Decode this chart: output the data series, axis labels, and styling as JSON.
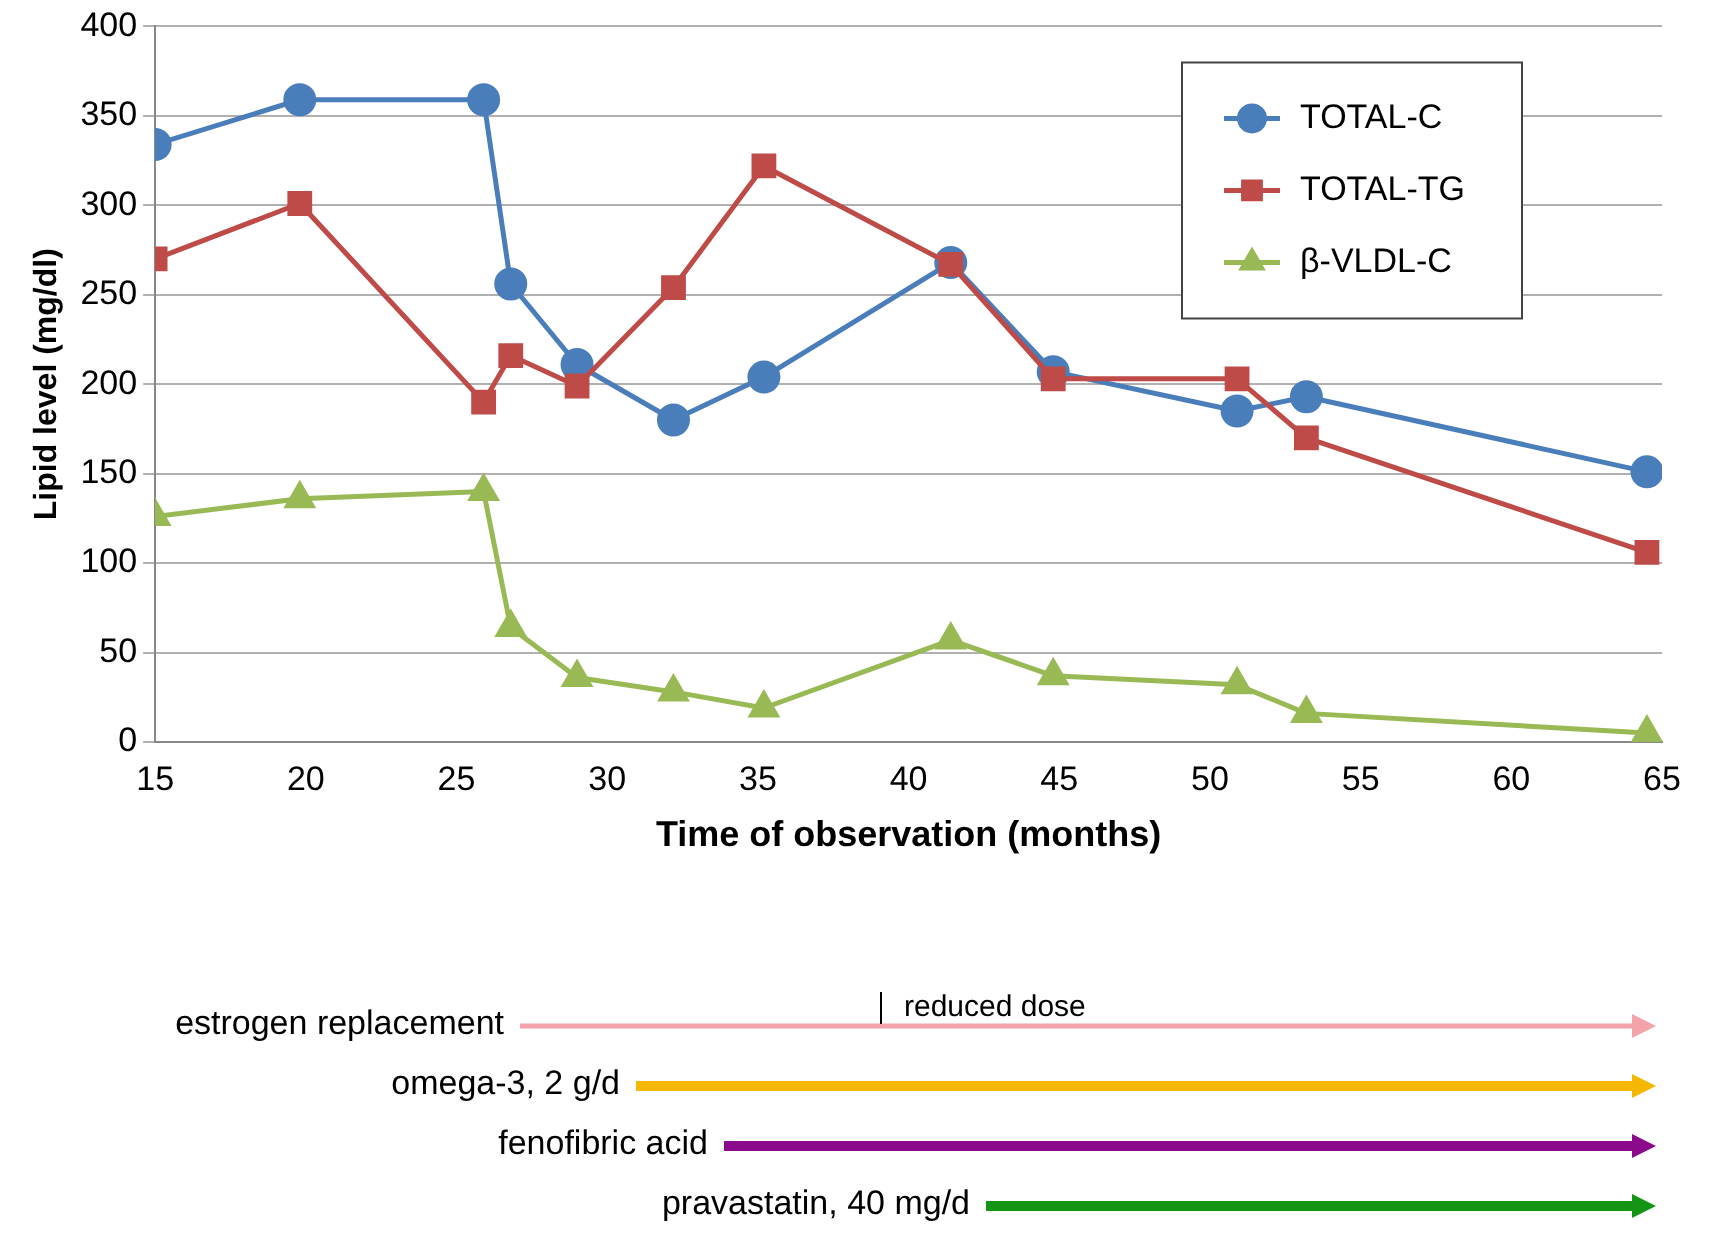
{
  "chart_data": {
    "type": "line",
    "xlabel": "Time of observation (months)",
    "ylabel": "Lipid level (mg/dl)",
    "xlim": [
      15,
      65
    ],
    "xticks": [
      15,
      20,
      25,
      30,
      35,
      40,
      45,
      50,
      55,
      60,
      65
    ],
    "ylim": [
      0,
      400
    ],
    "yticks": [
      0,
      50,
      100,
      150,
      200,
      250,
      300,
      350,
      400
    ],
    "grid": "y",
    "legend": "top right",
    "series": [
      {
        "name": "TOTAL-C",
        "color": "#4a7ebb",
        "marker": "circle",
        "x": [
          15,
          19.8,
          25.9,
          26.8,
          29.0,
          32.2,
          35.2,
          41.4,
          44.8,
          50.9,
          53.2,
          64.5
        ],
        "values": [
          334,
          359,
          359,
          256,
          211,
          180,
          204,
          268,
          207,
          185,
          193,
          151
        ]
      },
      {
        "name": "TOTAL-TG",
        "color": "#be4b48",
        "marker": "square",
        "x": [
          15,
          19.8,
          25.9,
          26.8,
          29.0,
          32.2,
          35.2,
          41.4,
          44.8,
          50.9,
          53.2,
          64.5
        ],
        "values": [
          270,
          301,
          190,
          216,
          199,
          254,
          322,
          267,
          203,
          203,
          170,
          106
        ]
      },
      {
        "name": "β-VLDL-C",
        "color": "#98b954",
        "marker": "triangle",
        "x": [
          15,
          19.8,
          25.9,
          26.8,
          29.0,
          32.2,
          35.2,
          41.4,
          44.8,
          50.9,
          53.2,
          64.5
        ],
        "values": [
          126,
          136,
          140,
          64,
          36,
          28,
          19,
          57,
          37,
          32,
          16,
          5
        ]
      }
    ],
    "annotations": [
      "estrogen replacement",
      "omega-3, 2 g/d",
      "fenofibric acid",
      "pravastatin, 40 mg/d",
      "reduced dose"
    ]
  }
}
